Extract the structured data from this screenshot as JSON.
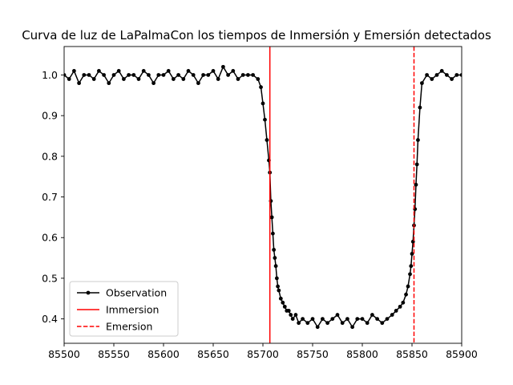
{
  "chart_data": {
    "type": "line",
    "title": "Curva de luz de LaPalmaCon los tiempos de Inmersión y Emersión detectados",
    "xlabel": "",
    "ylabel": "",
    "xlim": [
      85500,
      85900
    ],
    "ylim": [
      0.34,
      1.07
    ],
    "xticks": [
      85500,
      85550,
      85600,
      85650,
      85700,
      85750,
      85800,
      85850,
      85900
    ],
    "yticks": [
      0.4,
      0.5,
      0.6,
      0.7,
      0.8,
      0.9,
      1.0
    ],
    "ytick_labels": [
      "0.4",
      "0.5",
      "0.6",
      "0.7",
      "0.8",
      "0.9",
      "1.0"
    ],
    "grid": false,
    "legend_position": "lower-left",
    "series": [
      {
        "name": "Observation",
        "style": "line-with-dots",
        "color": "#000000",
        "x": [
          85500,
          85505,
          85510,
          85515,
          85520,
          85525,
          85530,
          85535,
          85540,
          85545,
          85550,
          85555,
          85560,
          85565,
          85570,
          85575,
          85580,
          85585,
          85590,
          85595,
          85600,
          85605,
          85610,
          85615,
          85620,
          85625,
          85630,
          85635,
          85640,
          85645,
          85650,
          85655,
          85660,
          85665,
          85670,
          85675,
          85680,
          85685,
          85690,
          85695,
          85698,
          85700,
          85702,
          85704,
          85706,
          85707,
          85708,
          85709,
          85710,
          85711,
          85712,
          85713,
          85714,
          85715,
          85716,
          85718,
          85720,
          85722,
          85724,
          85726,
          85728,
          85730,
          85733,
          85736,
          85740,
          85745,
          85750,
          85755,
          85760,
          85765,
          85770,
          85775,
          85780,
          85785,
          85790,
          85795,
          85800,
          85805,
          85810,
          85815,
          85820,
          85825,
          85830,
          85834,
          85838,
          85841,
          85844,
          85846,
          85848,
          85849,
          85850,
          85851,
          85852,
          85853,
          85854,
          85855,
          85856,
          85858,
          85860,
          85865,
          85870,
          85875,
          85880,
          85885,
          85890,
          85895,
          85900
        ],
        "y": [
          1.0,
          0.99,
          1.01,
          0.98,
          1.0,
          1.0,
          0.99,
          1.01,
          1.0,
          0.98,
          1.0,
          1.01,
          0.99,
          1.0,
          1.0,
          0.99,
          1.01,
          1.0,
          0.98,
          1.0,
          1.0,
          1.01,
          0.99,
          1.0,
          0.99,
          1.01,
          1.0,
          0.98,
          1.0,
          1.0,
          1.01,
          0.99,
          1.02,
          1.0,
          1.01,
          0.99,
          1.0,
          1.0,
          1.0,
          0.99,
          0.97,
          0.93,
          0.89,
          0.84,
          0.79,
          0.76,
          0.69,
          0.65,
          0.61,
          0.57,
          0.55,
          0.53,
          0.5,
          0.48,
          0.47,
          0.45,
          0.44,
          0.43,
          0.42,
          0.42,
          0.41,
          0.4,
          0.41,
          0.39,
          0.4,
          0.39,
          0.4,
          0.38,
          0.4,
          0.39,
          0.4,
          0.41,
          0.39,
          0.4,
          0.38,
          0.4,
          0.4,
          0.39,
          0.41,
          0.4,
          0.39,
          0.4,
          0.41,
          0.42,
          0.43,
          0.44,
          0.46,
          0.48,
          0.51,
          0.53,
          0.56,
          0.59,
          0.63,
          0.67,
          0.73,
          0.78,
          0.84,
          0.92,
          0.98,
          1.0,
          0.99,
          1.0,
          1.01,
          1.0,
          0.99,
          1.0,
          1.0
        ]
      },
      {
        "name": "Immersion",
        "style": "solid-vertical-line",
        "color": "#ff0000",
        "x": 85707
      },
      {
        "name": "Emersion",
        "style": "dashed-vertical-line",
        "color": "#ff0000",
        "x": 85852
      }
    ]
  }
}
